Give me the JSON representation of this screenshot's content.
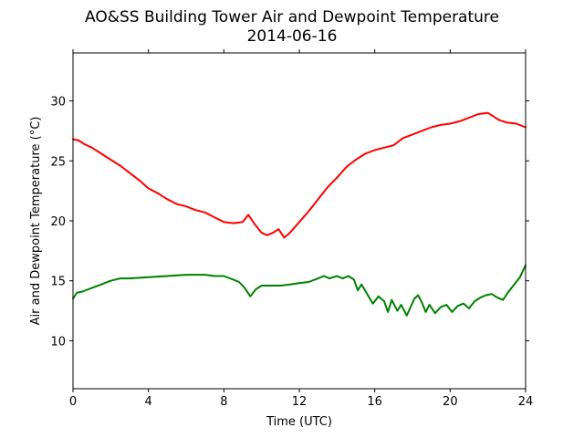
{
  "chart_data": {
    "type": "line",
    "title": "AO&SS Building Tower Air and Dewpoint Temperature",
    "subtitle": "2014-06-16",
    "xlabel": "Time (UTC)",
    "ylabel": "Air and Dewpoint Temperature (°C)",
    "xlim": [
      0,
      24
    ],
    "ylim": [
      6,
      34
    ],
    "xticks": [
      0,
      4,
      8,
      12,
      16,
      20,
      24
    ],
    "yticks": [
      10,
      15,
      20,
      25,
      30
    ],
    "grid": false,
    "series": [
      {
        "color": "#ff0000",
        "x": [
          0,
          0.3,
          0.6,
          1,
          1.5,
          2,
          2.5,
          3,
          3.5,
          4,
          4.5,
          5,
          5.5,
          6,
          6.5,
          7,
          7.5,
          8,
          8.5,
          9,
          9.3,
          9.6,
          9.8,
          10,
          10.3,
          10.6,
          10.9,
          11.2,
          11.5,
          12,
          12.5,
          13,
          13.5,
          14,
          14.5,
          15,
          15.5,
          16,
          16.5,
          17,
          17.5,
          18,
          18.5,
          19,
          19.5,
          20,
          20.5,
          21,
          21.5,
          22,
          22.3,
          22.6,
          23,
          23.5,
          24
        ],
        "y": [
          26.8,
          26.7,
          26.4,
          26.1,
          25.6,
          25.1,
          24.6,
          24.0,
          23.4,
          22.7,
          22.3,
          21.8,
          21.4,
          21.2,
          20.9,
          20.7,
          20.3,
          19.9,
          19.8,
          19.9,
          20.5,
          19.8,
          19.4,
          19.0,
          18.8,
          19.0,
          19.3,
          18.6,
          19.0,
          19.9,
          20.8,
          21.8,
          22.8,
          23.6,
          24.5,
          25.1,
          25.6,
          25.9,
          26.1,
          26.3,
          26.9,
          27.2,
          27.5,
          27.8,
          28.0,
          28.1,
          28.3,
          28.6,
          28.9,
          29.0,
          28.7,
          28.4,
          28.2,
          28.1,
          27.8
        ]
      },
      {
        "color": "#008000",
        "x": [
          0,
          0.2,
          0.5,
          1,
          1.5,
          2,
          2.5,
          3,
          4,
          5,
          6,
          7,
          7.5,
          8,
          8.5,
          8.8,
          9.1,
          9.4,
          9.7,
          10,
          10.5,
          11,
          11.5,
          12,
          12.5,
          13,
          13.3,
          13.6,
          14,
          14.3,
          14.6,
          14.9,
          15.1,
          15.3,
          15.6,
          15.9,
          16.2,
          16.5,
          16.7,
          16.9,
          17.2,
          17.4,
          17.7,
          17.9,
          18.1,
          18.3,
          18.5,
          18.7,
          18.9,
          19.2,
          19.5,
          19.8,
          20.1,
          20.4,
          20.7,
          21.0,
          21.3,
          21.6,
          21.9,
          22.2,
          22.5,
          22.8,
          23.1,
          23.4,
          23.7,
          24
        ],
        "y": [
          13.5,
          14.0,
          14.1,
          14.4,
          14.7,
          15.0,
          15.2,
          15.2,
          15.3,
          15.4,
          15.5,
          15.5,
          15.4,
          15.4,
          15.1,
          14.9,
          14.4,
          13.7,
          14.3,
          14.6,
          14.6,
          14.6,
          14.7,
          14.8,
          14.9,
          15.2,
          15.4,
          15.2,
          15.4,
          15.2,
          15.4,
          15.1,
          14.2,
          14.7,
          13.9,
          13.1,
          13.7,
          13.3,
          12.4,
          13.4,
          12.5,
          13.0,
          12.1,
          12.8,
          13.5,
          13.8,
          13.2,
          12.4,
          13.0,
          12.3,
          12.8,
          13.0,
          12.4,
          12.9,
          13.1,
          12.7,
          13.3,
          13.6,
          13.8,
          13.9,
          13.6,
          13.4,
          14.1,
          14.7,
          15.3,
          16.3
        ]
      }
    ]
  }
}
